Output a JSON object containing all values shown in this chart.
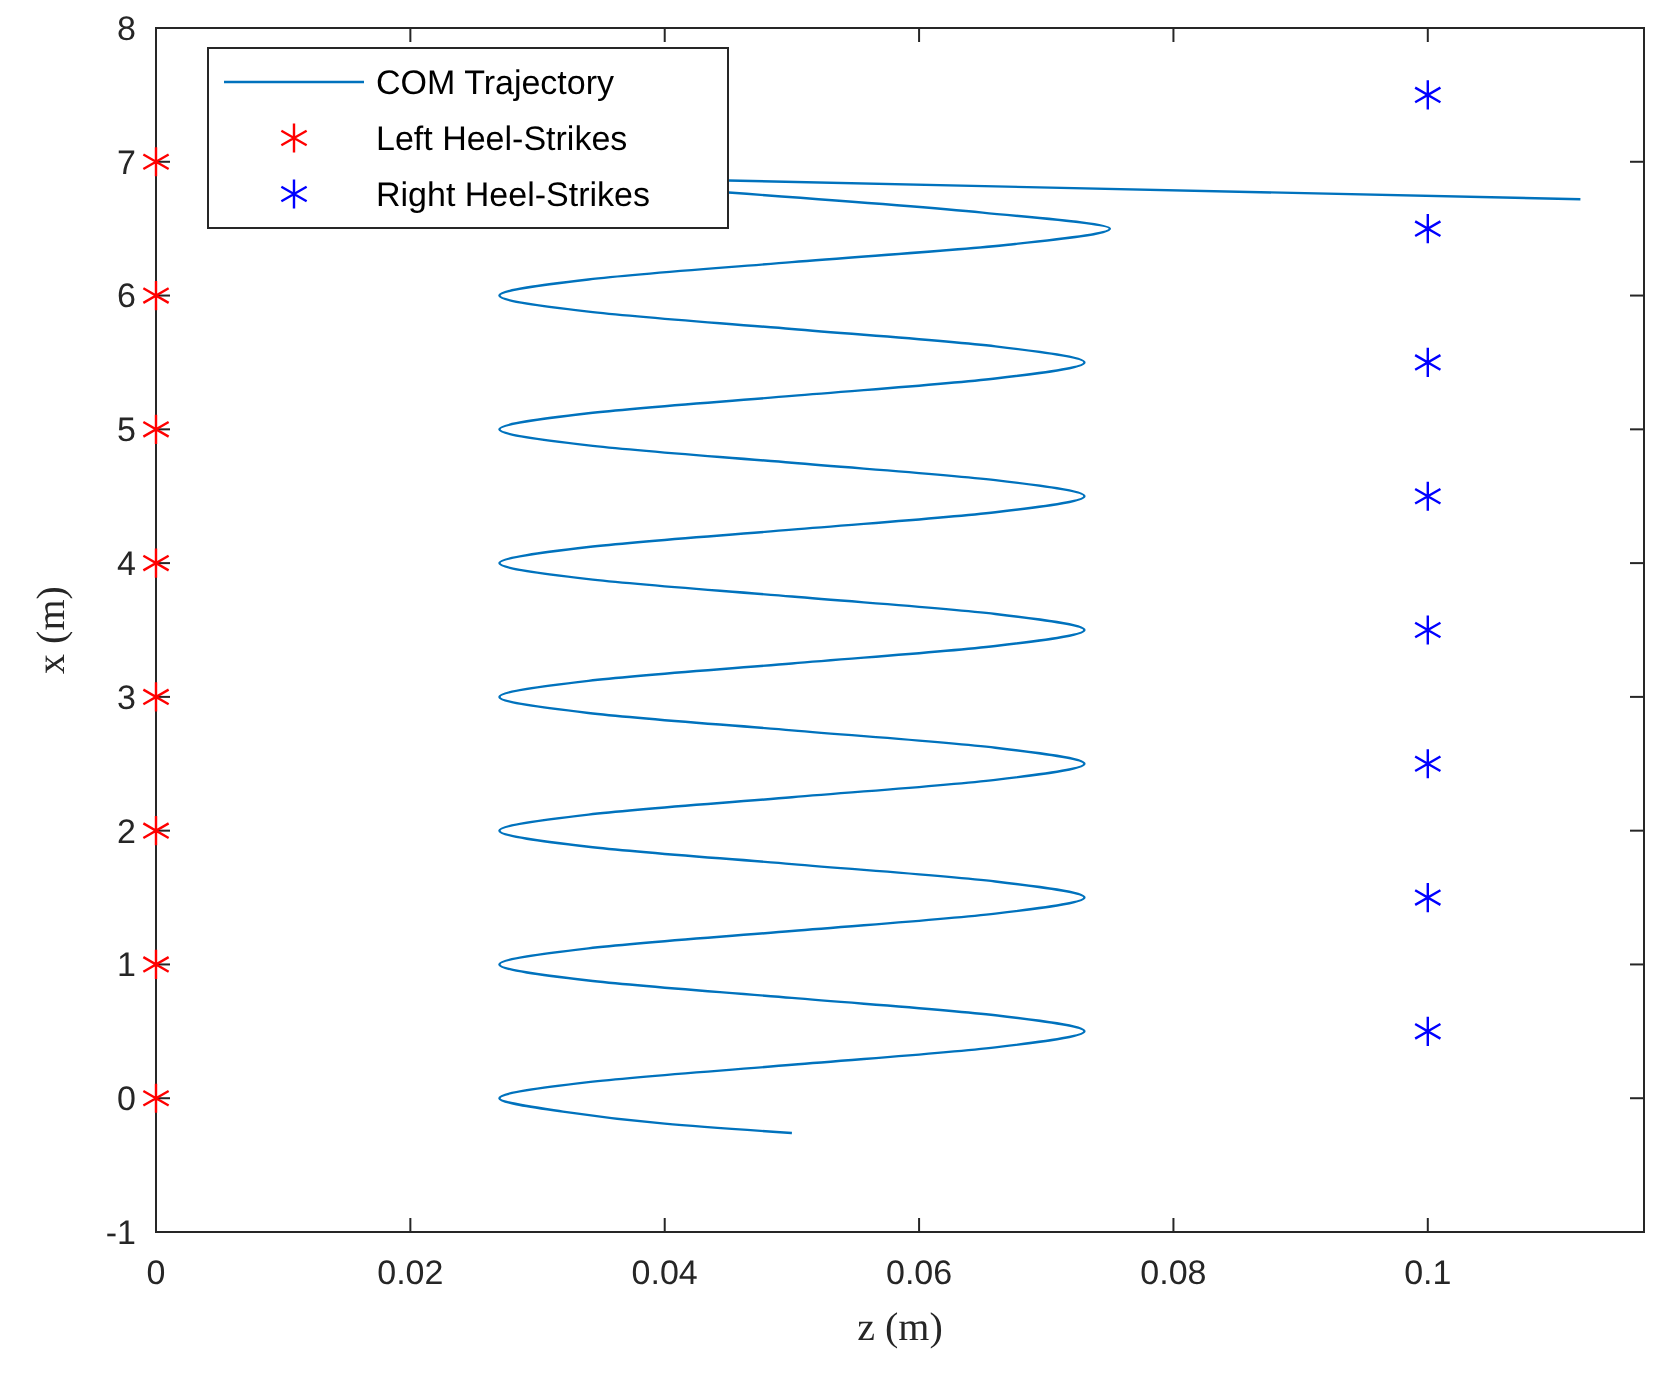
{
  "chart_data": {
    "type": "line",
    "xlabel": "z (m)",
    "ylabel": "x (m)",
    "xlim": [
      0,
      0.117
    ],
    "ylim": [
      -1,
      8
    ],
    "xticks": [
      0,
      0.02,
      0.04,
      0.06,
      0.08,
      0.1
    ],
    "yticks": [
      -1,
      0,
      1,
      2,
      3,
      4,
      5,
      6,
      7,
      8
    ],
    "grid": false,
    "legend": "top left",
    "series": [
      {
        "name": "COM Trajectory",
        "color": "#0072bd",
        "marker": "none",
        "x": [
          0.05,
          0.04,
          0.032,
          0.027,
          0.034,
          0.05,
          0.066,
          0.073,
          0.066,
          0.05,
          0.034,
          0.027,
          0.034,
          0.05,
          0.066,
          0.073,
          0.066,
          0.05,
          0.034,
          0.027,
          0.034,
          0.05,
          0.066,
          0.073,
          0.066,
          0.05,
          0.034,
          0.027,
          0.034,
          0.05,
          0.066,
          0.073,
          0.066,
          0.05,
          0.034,
          0.027,
          0.034,
          0.05,
          0.066,
          0.073,
          0.066,
          0.05,
          0.034,
          0.027,
          0.034,
          0.05,
          0.066,
          0.073,
          0.066,
          0.05,
          0.034,
          0.027,
          0.034,
          0.05,
          0.067,
          0.075,
          0.065,
          0.045,
          null,
          0.045,
          0.112
        ],
        "values": [
          -0.26,
          -0.19,
          -0.1,
          0,
          0.12,
          0.25,
          0.38,
          0.5,
          0.62,
          0.75,
          0.88,
          1,
          1.12,
          1.25,
          1.38,
          1.5,
          1.62,
          1.75,
          1.88,
          2,
          2.12,
          2.25,
          2.38,
          2.5,
          2.62,
          2.75,
          2.88,
          3,
          3.12,
          3.25,
          3.38,
          3.5,
          3.62,
          3.75,
          3.88,
          4,
          4.12,
          4.25,
          4.38,
          4.5,
          4.62,
          4.75,
          4.88,
          5,
          5.12,
          5.25,
          5.38,
          5.5,
          5.62,
          5.75,
          5.88,
          6,
          6.12,
          6.25,
          6.38,
          6.5,
          6.62,
          6.77,
          null,
          6.86,
          6.72
        ]
      },
      {
        "name": "Left Heel-Strikes",
        "type": "scatter",
        "color": "#ff0000",
        "marker": "cross",
        "x": [
          0,
          0,
          0,
          0,
          0,
          0,
          0,
          0
        ],
        "values": [
          0,
          1,
          2,
          3,
          4,
          5,
          6,
          7
        ]
      },
      {
        "name": "Right Heel-Strikes",
        "type": "scatter",
        "color": "#0000ff",
        "marker": "cross",
        "x": [
          0.1,
          0.1,
          0.1,
          0.1,
          0.1,
          0.1,
          0.1,
          0.1
        ],
        "values": [
          0.5,
          1.5,
          2.5,
          3.5,
          4.5,
          5.5,
          6.5,
          7.5
        ]
      }
    ]
  }
}
